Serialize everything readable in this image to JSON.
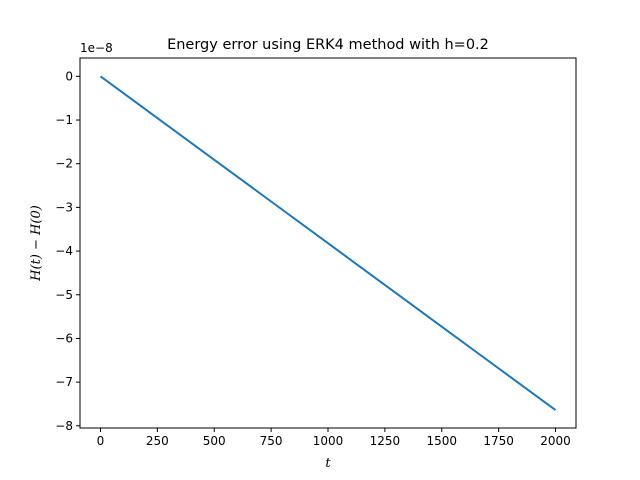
{
  "chart_data": {
    "type": "line",
    "title": "Energy error using ERK4 method with h=0.2",
    "xlabel": "t",
    "ylabel": "H(t) − H(0)",
    "y_offset_label": "1e−8",
    "xlim": [
      -90,
      2090
    ],
    "ylim": [
      -8.05,
      0.42
    ],
    "x_ticks": [
      0,
      250,
      500,
      750,
      1000,
      1250,
      1500,
      1750,
      2000
    ],
    "x_tick_labels": [
      "0",
      "250",
      "500",
      "750",
      "1000",
      "1250",
      "1500",
      "1750",
      "2000"
    ],
    "y_ticks": [
      0,
      -1,
      -2,
      -3,
      -4,
      -5,
      -6,
      -7,
      -8
    ],
    "y_tick_labels": [
      "0",
      "−1",
      "−2",
      "−3",
      "−4",
      "−5",
      "−6",
      "−7",
      "−8"
    ],
    "grid": false,
    "series": [
      {
        "color": "#1f77b4",
        "x": [
          0,
          250,
          500,
          750,
          1000,
          1250,
          1500,
          1750,
          2000
        ],
        "y": [
          0,
          -0.955,
          -1.91,
          -2.865,
          -3.82,
          -4.775,
          -5.73,
          -6.685,
          -7.64
        ]
      }
    ]
  }
}
